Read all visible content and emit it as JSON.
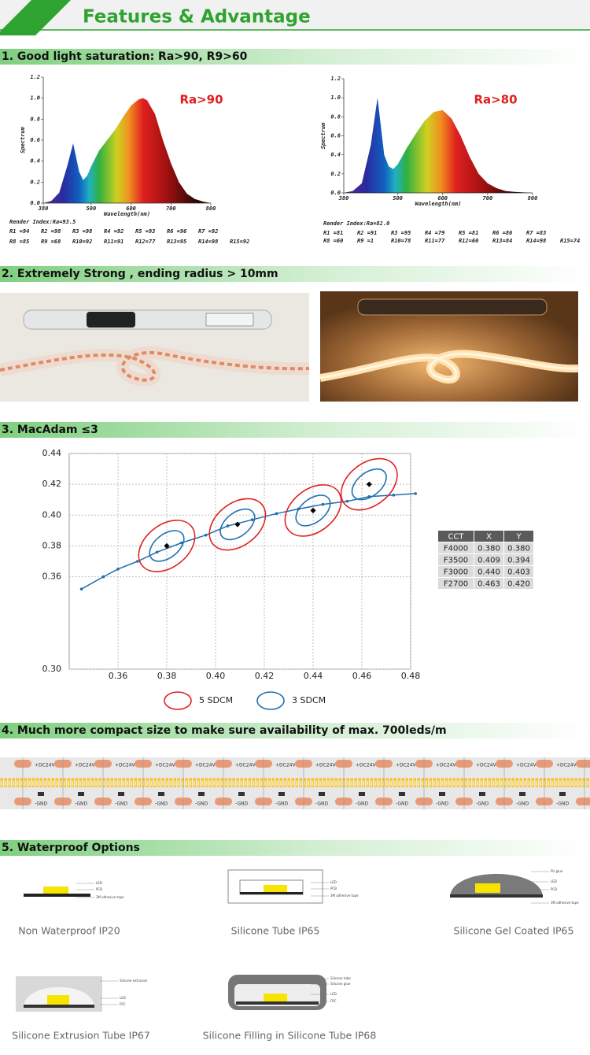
{
  "header": {
    "title": "Features & Advantage"
  },
  "sections": [
    {
      "title": "1. Good light saturation: Ra>90, R9>60",
      "charts": [
        {
          "type": "area",
          "annotation": "Ra>90",
          "ylabel": "Spectrum",
          "xlabel": "Wavelength(nm)",
          "x": [
            380,
            400,
            420,
            440,
            455,
            470,
            480,
            490,
            500,
            520,
            540,
            560,
            580,
            600,
            620,
            630,
            640,
            660,
            680,
            700,
            720,
            740,
            760,
            780,
            800
          ],
          "values": [
            0,
            0.02,
            0.1,
            0.35,
            0.57,
            0.3,
            0.22,
            0.26,
            0.35,
            0.5,
            0.6,
            0.7,
            0.82,
            0.93,
            0.99,
            1.0,
            0.98,
            0.85,
            0.6,
            0.38,
            0.2,
            0.09,
            0.04,
            0.015,
            0
          ],
          "xlim": [
            380,
            800
          ],
          "xticks": [
            380,
            500,
            600,
            700,
            800
          ],
          "ylim": [
            0,
            1.2
          ],
          "yticks": [
            {
              "value": 0,
              "label": "0.0"
            },
            0.2,
            0.4,
            0.6,
            0.8,
            {
              "value": 1,
              "label": "1.0"
            },
            1.2
          ],
          "render_index": "Render Index:Ra=93.5",
          "r_values": [
            [
              "R1 =94",
              "R2 =98",
              "R3 =98",
              "R4 =92",
              "R5 =93",
              "R6 =96",
              "R7 =92"
            ],
            [
              "R8 =85",
              "R9 =68",
              "R10=92",
              "R11=91",
              "R12=77",
              "R13=95",
              "R14=98",
              "R15=92"
            ]
          ]
        },
        {
          "type": "area",
          "annotation": "Ra>80",
          "ylabel": "Spectrum",
          "xlabel": "Wavelength(nm)",
          "x": [
            380,
            400,
            420,
            440,
            455,
            470,
            480,
            490,
            500,
            520,
            540,
            560,
            580,
            600,
            620,
            640,
            660,
            680,
            700,
            720,
            740,
            760,
            780,
            800
          ],
          "values": [
            0,
            0.02,
            0.1,
            0.5,
            1.0,
            0.4,
            0.28,
            0.25,
            0.3,
            0.47,
            0.62,
            0.76,
            0.85,
            0.87,
            0.78,
            0.6,
            0.38,
            0.2,
            0.1,
            0.05,
            0.02,
            0.01,
            0.005,
            0
          ],
          "xlim": [
            380,
            800
          ],
          "xticks": [
            380,
            500,
            600,
            700,
            800
          ],
          "ylim": [
            0,
            1.2
          ],
          "yticks": [
            {
              "value": 0,
              "label": "0.0"
            },
            0.2,
            0.4,
            0.6,
            0.8,
            {
              "value": 1,
              "label": "1.0"
            },
            1.2
          ],
          "render_index": "Render Index:Ra=82.0",
          "r_values": [
            [
              "R1 =81",
              "R2 =91",
              "R3 =95",
              "R4 =79",
              "R5 =81",
              "R6 =86",
              "R7 =83"
            ],
            [
              "R8 =60",
              "R9 =1",
              "R10=78",
              "R11=77",
              "R12=60",
              "R13=84",
              "R14=98",
              "R15=74"
            ]
          ]
        }
      ]
    },
    {
      "title": "2. Extremely Strong , ending radius > 10mm"
    },
    {
      "title": "3. MacAdam ≤3",
      "chart": {
        "type": "scatter",
        "grid": true,
        "xlim": [
          0.34,
          0.48
        ],
        "xticks": [
          0.36,
          0.38,
          {
            "value": 0.4,
            "label": "0.40"
          },
          0.42,
          0.44,
          0.46,
          0.48
        ],
        "ylim": [
          0.3,
          0.44
        ],
        "yticks": [
          {
            "value": 0.3,
            "label": "0.30"
          },
          0.36,
          0.38,
          {
            "value": 0.4,
            "label": "0.40"
          },
          0.42,
          0.44
        ],
        "locus": {
          "color": "#1f6fb0",
          "x": [
            0.345,
            0.354,
            0.36,
            0.368,
            0.376,
            0.386,
            0.396,
            0.405,
            0.415,
            0.425,
            0.434,
            0.444,
            0.454,
            0.463,
            0.473,
            0.482
          ],
          "y": [
            0.352,
            0.36,
            0.365,
            0.37,
            0.376,
            0.382,
            0.387,
            0.393,
            0.397,
            0.401,
            0.404,
            0.407,
            0.409,
            0.412,
            0.413,
            0.414
          ]
        },
        "centers": {
          "x": [
            0.38,
            0.409,
            0.44,
            0.463
          ],
          "y": [
            0.38,
            0.394,
            0.403,
            0.42
          ]
        },
        "series": [
          {
            "name": "5 SDCM",
            "color": "#e02020"
          },
          {
            "name": "3 SDCM",
            "color": "#2070b0"
          }
        ]
      },
      "table": {
        "header": [
          "CCT",
          "X",
          "Y"
        ],
        "rows": [
          [
            "F4000",
            "0.380",
            "0.380"
          ],
          [
            "F3500",
            "0.409",
            "0.394"
          ],
          [
            "F3000",
            "0.440",
            "0.403"
          ],
          [
            "F2700",
            "0.463",
            "0.420"
          ]
        ]
      }
    },
    {
      "title": "4. Much more compact size to make sure availability of max. 700leds/m",
      "strip": {
        "positive_label": "+DC24V",
        "negative_label": "-GND"
      }
    },
    {
      "title": "5. Waterproof Options",
      "options": [
        {
          "caption": "Non Waterproof IP20",
          "labels": [
            "LED",
            "PCB",
            "3M adhesive tape"
          ]
        },
        {
          "caption": "Silicone Tube IP65",
          "labels": [
            "LED",
            "PCB",
            "3M adhesive tape"
          ]
        },
        {
          "caption": "Silicone Gel Coated IP65",
          "labels": [
            "PU glue",
            "LED",
            "PCB",
            "3M adhesive tape"
          ]
        },
        {
          "caption": "Silicone Extrusion Tube IP67",
          "labels": [
            "Silicone extrusion",
            "LED",
            "FPC"
          ]
        },
        {
          "caption": "Silicone Filling in Silicone Tube IP68",
          "labels": [
            "Silicone tube",
            "Silicone glue",
            "LED",
            "FPC"
          ]
        }
      ]
    }
  ]
}
